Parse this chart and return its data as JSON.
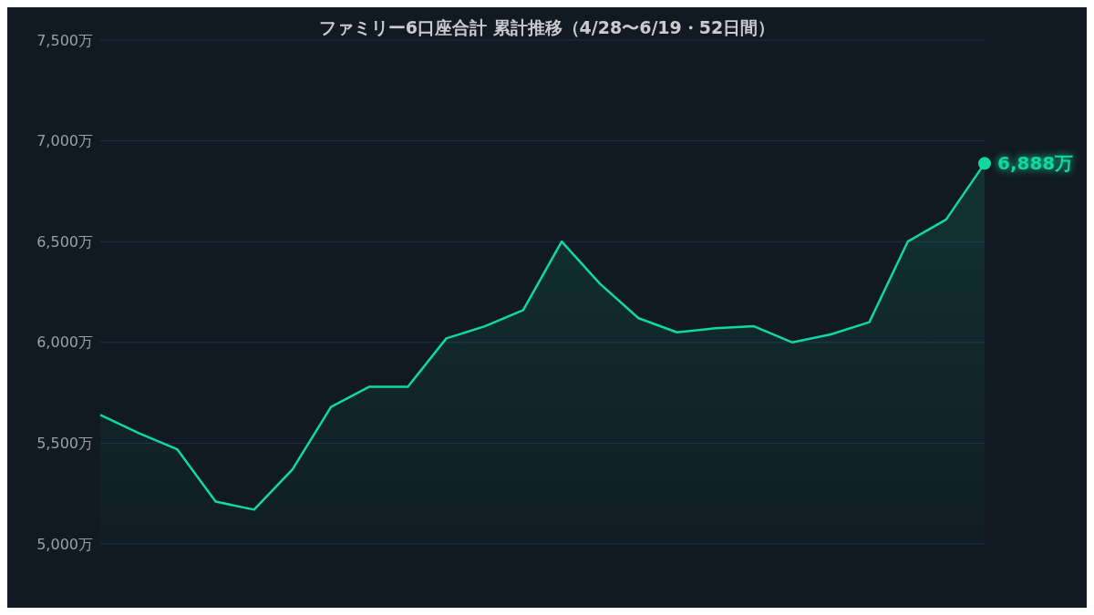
{
  "chart_data": {
    "type": "area",
    "title": "ファミリー6口座合計 累計推移（4/28〜6/19・52日間）",
    "categories": [
      null,
      null,
      null,
      null,
      null,
      null,
      null,
      null,
      null,
      null,
      null,
      null,
      null,
      null,
      null,
      null,
      null,
      null,
      null,
      null,
      null,
      null,
      null,
      null
    ],
    "values": [
      5640,
      5550,
      5470,
      5210,
      5170,
      5370,
      5680,
      5780,
      5780,
      6020,
      6080,
      6160,
      6500,
      6290,
      6120,
      6050,
      6070,
      6080,
      6000,
      6040,
      6100,
      6500,
      6610,
      6888
    ],
    "value_labels": [
      null,
      null,
      null,
      null,
      null,
      null,
      null,
      null,
      null,
      null,
      null,
      null,
      null,
      null,
      null,
      null,
      null,
      null,
      null,
      null,
      null,
      null,
      null,
      "6,888万"
    ],
    "color": "#10d9a0",
    "ylim": [
      5000,
      7500
    ],
    "yticks": [
      {
        "value": 5000,
        "label": "5,000万"
      },
      {
        "value": 5500,
        "label": "5,500万"
      },
      {
        "value": 6000,
        "label": "6,000万"
      },
      {
        "value": 6500,
        "label": "6,500万"
      },
      {
        "value": 7000,
        "label": "7,000万"
      },
      {
        "value": 7500,
        "label": "7,500万"
      }
    ],
    "grid": "y",
    "marker": "none",
    "line_style": "solid"
  }
}
